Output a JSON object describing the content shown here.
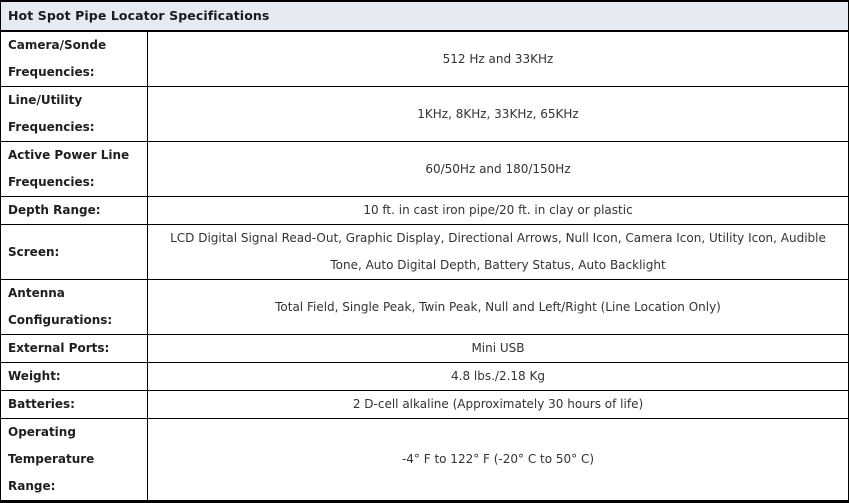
{
  "colors": {
    "header_background": "#e7eaf3",
    "border": "#000000",
    "label_text": "#1f1f1f",
    "value_text": "#333333",
    "page_background": "#ffffff"
  },
  "table": {
    "title": "Hot Spot Pipe Locator Specifications",
    "rows": [
      {
        "label": "Camera/Sonde Frequencies:",
        "value": "512 Hz and 33KHz"
      },
      {
        "label": "Line/Utility Frequencies:",
        "value": "1KHz, 8KHz, 33KHz, 65KHz"
      },
      {
        "label": "Active Power Line Frequencies:",
        "value": "60/50Hz and 180/150Hz"
      },
      {
        "label": "Depth Range:",
        "value": "10 ft. in cast iron pipe/20 ft. in clay or plastic"
      },
      {
        "label": "Screen:",
        "value": "LCD Digital Signal Read-Out, Graphic Display, Directional Arrows, Null Icon, Camera Icon, Utility Icon, Audible Tone, Auto Digital Depth, Battery Status, Auto Backlight"
      },
      {
        "label": "Antenna Configurations:",
        "value": "Total Field, Single Peak, Twin Peak, Null and Left/Right (Line Location Only)"
      },
      {
        "label": "External Ports:",
        "value": "Mini USB"
      },
      {
        "label": "Weight:",
        "value": "4.8 lbs./2.18 Kg"
      },
      {
        "label": "Batteries:",
        "value": "2 D-cell alkaline (Approximately 30 hours of life)"
      },
      {
        "label": "Operating Temperature Range:",
        "value": "-4° F to 122° F (-20° C to 50° C)"
      }
    ]
  }
}
